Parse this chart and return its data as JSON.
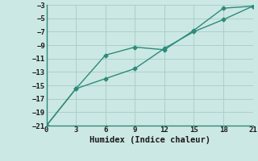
{
  "line1_x": [
    0,
    3,
    6,
    9,
    12,
    15,
    18,
    21
  ],
  "line1_y": [
    -21,
    -15.5,
    -10.5,
    -9.3,
    -9.7,
    -6.8,
    -3.5,
    -3.2
  ],
  "line2_x": [
    0,
    3,
    6,
    9,
    12,
    15,
    18,
    21
  ],
  "line2_y": [
    -21,
    -15.5,
    -14.0,
    -12.5,
    -9.5,
    -7.0,
    -5.2,
    -3.2
  ],
  "line_color": "#2d8b7a",
  "bg_color": "#cce8e4",
  "grid_color": "#aacfcb",
  "xlabel": "Humidex (Indice chaleur)",
  "xlabel_fontsize": 7.5,
  "xlim": [
    0,
    21
  ],
  "ylim": [
    -21,
    -3
  ],
  "xticks": [
    0,
    3,
    6,
    9,
    12,
    15,
    18,
    21
  ],
  "yticks": [
    -21,
    -19,
    -17,
    -15,
    -13,
    -11,
    -9,
    -7,
    -5,
    -3
  ],
  "marker": "D",
  "marker_size": 2.5,
  "line_width": 1.0
}
